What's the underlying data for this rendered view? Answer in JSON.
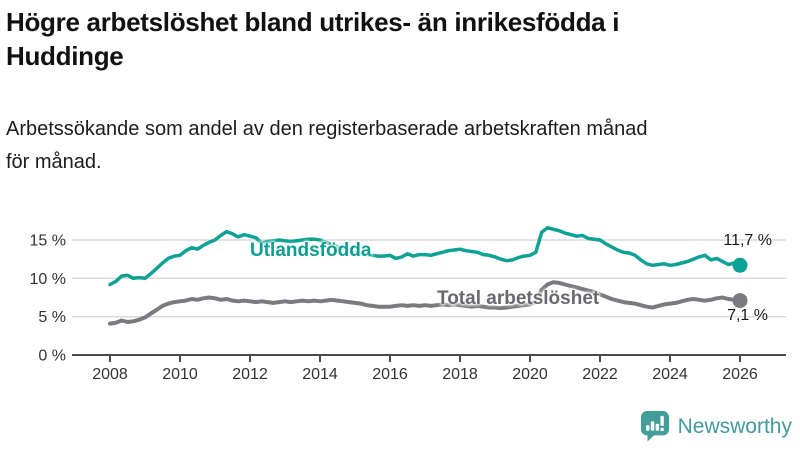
{
  "header": {
    "title_lines": [
      "Högre arbetslöshet bland utrikes- än inrikesfödda i",
      "Huddinge"
    ],
    "subtitle_lines": [
      "Arbetssökande som andel av den registerbaserade arbetskraften månad",
      "för månad."
    ]
  },
  "chart_data": {
    "type": "line",
    "title": "Högre arbetslöshet bland utrikes- än inrikesfödda i Huddinge",
    "subtitle": "Arbetssökande som andel av den registerbaserade arbetskraften månad för månad.",
    "x_start": 2008,
    "x_step_years": 0.1666667,
    "xlim": [
      2007.2,
      2027.3
    ],
    "grid": true,
    "x_axis": {
      "ticks": [
        2008,
        2010,
        2012,
        2014,
        2016,
        2018,
        2020,
        2022,
        2024,
        2026
      ]
    },
    "y_axis": {
      "ticks": [
        0,
        5,
        10,
        15
      ],
      "tick_labels": [
        "0 %",
        "5 %",
        "10 %",
        "15 %"
      ],
      "ylim": [
        0,
        17.5
      ],
      "unit": "%"
    },
    "series": [
      {
        "name": "Utlandsfödda",
        "color": "#0da295",
        "end_label": "11,7 %",
        "end_value": 11.7,
        "values": [
          9.2,
          9.6,
          10.3,
          10.4,
          10.0,
          10.1,
          10.0,
          10.6,
          11.3,
          12.0,
          12.6,
          12.9,
          13.0,
          13.6,
          14.0,
          13.8,
          14.3,
          14.7,
          15.0,
          15.6,
          16.1,
          15.8,
          15.4,
          15.7,
          15.5,
          15.3,
          14.6,
          14.8,
          14.9,
          15.0,
          14.9,
          14.8,
          14.9,
          15.0,
          15.1,
          15.1,
          15.0,
          14.7,
          14.4,
          14.1,
          13.9,
          13.7,
          13.5,
          13.3,
          13.1,
          13.0,
          12.9,
          12.9,
          13.0,
          12.6,
          12.8,
          13.2,
          12.9,
          13.1,
          13.1,
          13.0,
          13.2,
          13.4,
          13.6,
          13.7,
          13.8,
          13.6,
          13.5,
          13.4,
          13.1,
          13.0,
          12.8,
          12.5,
          12.3,
          12.4,
          12.7,
          12.9,
          13.0,
          13.4,
          16.0,
          16.6,
          16.4,
          16.2,
          15.9,
          15.7,
          15.5,
          15.6,
          15.2,
          15.1,
          15.0,
          14.5,
          14.1,
          13.7,
          13.4,
          13.3,
          13.0,
          12.4,
          11.9,
          11.7,
          11.8,
          11.9,
          11.7,
          11.8,
          12.0,
          12.2,
          12.5,
          12.8,
          13.0,
          12.4,
          12.6,
          12.2,
          11.8,
          12.0,
          11.7
        ]
      },
      {
        "name": "Total arbetslöshet",
        "color": "#7b7b7f",
        "end_label": "7,1 %",
        "end_value": 7.1,
        "values": [
          4.1,
          4.2,
          4.5,
          4.3,
          4.4,
          4.6,
          4.9,
          5.4,
          5.9,
          6.4,
          6.7,
          6.9,
          7.0,
          7.1,
          7.3,
          7.2,
          7.4,
          7.5,
          7.4,
          7.2,
          7.3,
          7.1,
          7.0,
          7.1,
          7.0,
          6.9,
          7.0,
          6.9,
          6.8,
          6.9,
          7.0,
          6.9,
          7.0,
          7.1,
          7.0,
          7.1,
          7.0,
          7.1,
          7.2,
          7.1,
          7.0,
          6.9,
          6.8,
          6.7,
          6.5,
          6.4,
          6.3,
          6.3,
          6.3,
          6.4,
          6.5,
          6.4,
          6.5,
          6.4,
          6.5,
          6.4,
          6.5,
          6.6,
          6.5,
          6.6,
          6.5,
          6.4,
          6.3,
          6.4,
          6.3,
          6.2,
          6.2,
          6.1,
          6.2,
          6.3,
          6.4,
          6.5,
          6.6,
          7.0,
          8.5,
          9.2,
          9.5,
          9.4,
          9.2,
          9.0,
          8.8,
          8.6,
          8.4,
          8.2,
          7.9,
          7.6,
          7.3,
          7.1,
          6.9,
          6.8,
          6.7,
          6.5,
          6.3,
          6.2,
          6.4,
          6.6,
          6.7,
          6.8,
          7.0,
          7.2,
          7.3,
          7.2,
          7.1,
          7.2,
          7.4,
          7.5,
          7.3,
          7.2,
          7.1
        ]
      }
    ]
  },
  "logo": {
    "brand": "Newsworthy",
    "color": "#43999b",
    "icon": "bar-chart-speech-bubble-icon"
  }
}
